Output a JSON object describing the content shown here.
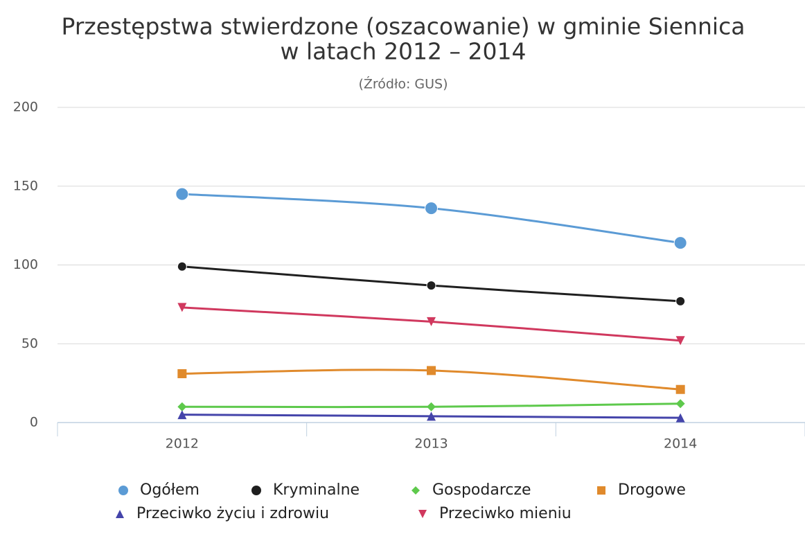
{
  "chart_data": {
    "type": "line",
    "title": [
      "Przestępstwa stwierdzone (oszacowanie) w gminie Siennica",
      "w latach 2012 – 2014"
    ],
    "subtitle": "(Źródło: GUS)",
    "categories": [
      "2012",
      "2013",
      "2014"
    ],
    "ylim": [
      0,
      200
    ],
    "yticks": [
      0,
      50,
      100,
      150,
      200
    ],
    "grid": true,
    "legend": "bottom",
    "smooth": true,
    "series": [
      {
        "name": "Ogółem",
        "color": "#5b9bd5",
        "marker": "circle",
        "values": [
          145,
          136,
          114
        ]
      },
      {
        "name": "Kryminalne",
        "color": "#1f1f1f",
        "marker": "circle",
        "values": [
          99,
          87,
          77
        ]
      },
      {
        "name": "Gospodarcze",
        "color": "#5ec94c",
        "marker": "diamond",
        "values": [
          10,
          10,
          12
        ]
      },
      {
        "name": "Drogowe",
        "color": "#e08a2c",
        "marker": "square",
        "values": [
          31,
          33,
          21
        ]
      },
      {
        "name": "Przeciwko życiu i zdrowiu",
        "color": "#4444aa",
        "marker": "triangle",
        "values": [
          5,
          4,
          3
        ]
      },
      {
        "name": "Przeciwko mieniu",
        "color": "#d0385e",
        "marker": "triangle-down",
        "values": [
          73,
          64,
          52
        ]
      }
    ]
  }
}
